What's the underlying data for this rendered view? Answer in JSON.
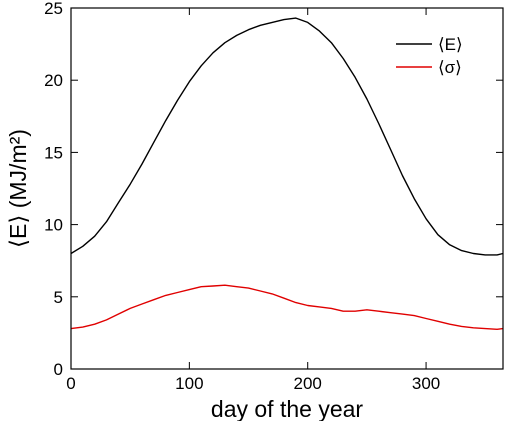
{
  "chart_data": {
    "type": "line",
    "title": "",
    "xlabel": "day of the year",
    "ylabel": "⟨E⟩ (MJ/m²)",
    "xlim": [
      0,
      365
    ],
    "ylim": [
      0,
      25
    ],
    "x_ticks": [
      0,
      100,
      200,
      300
    ],
    "y_ticks": [
      0,
      5,
      10,
      15,
      20,
      25
    ],
    "grid": false,
    "legend_position": "top-right",
    "series": [
      {
        "name": "⟨E⟩",
        "color": "#000000",
        "x": [
          0,
          10,
          20,
          30,
          40,
          50,
          60,
          70,
          80,
          90,
          100,
          110,
          120,
          130,
          140,
          150,
          160,
          170,
          180,
          190,
          200,
          210,
          220,
          230,
          240,
          250,
          260,
          270,
          280,
          290,
          300,
          310,
          320,
          330,
          340,
          350,
          360,
          365
        ],
        "values": [
          8.0,
          8.5,
          9.2,
          10.2,
          11.5,
          12.8,
          14.2,
          15.7,
          17.2,
          18.6,
          19.9,
          21.0,
          21.9,
          22.6,
          23.1,
          23.5,
          23.8,
          24.0,
          24.2,
          24.3,
          24.0,
          23.4,
          22.6,
          21.5,
          20.2,
          18.7,
          17.0,
          15.2,
          13.4,
          11.8,
          10.4,
          9.3,
          8.6,
          8.2,
          8.0,
          7.9,
          7.9,
          8.0
        ]
      },
      {
        "name": "⟨σ⟩",
        "color": "#e00000",
        "x": [
          0,
          10,
          20,
          30,
          40,
          50,
          60,
          70,
          80,
          90,
          100,
          110,
          120,
          130,
          140,
          150,
          160,
          170,
          180,
          190,
          200,
          210,
          220,
          230,
          240,
          250,
          260,
          270,
          280,
          290,
          300,
          310,
          320,
          330,
          340,
          350,
          360,
          365
        ],
        "values": [
          2.8,
          2.9,
          3.1,
          3.4,
          3.8,
          4.2,
          4.5,
          4.8,
          5.1,
          5.3,
          5.5,
          5.7,
          5.75,
          5.8,
          5.7,
          5.6,
          5.4,
          5.2,
          4.9,
          4.6,
          4.4,
          4.3,
          4.2,
          4.0,
          4.0,
          4.1,
          4.0,
          3.9,
          3.8,
          3.7,
          3.5,
          3.3,
          3.1,
          2.95,
          2.85,
          2.8,
          2.75,
          2.8
        ]
      }
    ]
  }
}
